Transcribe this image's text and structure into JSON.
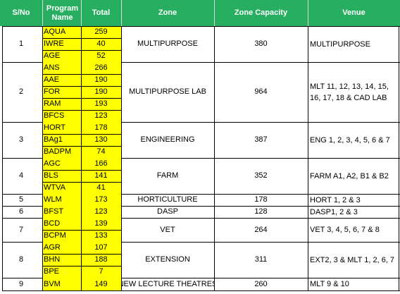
{
  "headers": {
    "sno": "S/No",
    "program": "Program Name",
    "total": "Total",
    "zone": "Zone",
    "capacity": "Zone Capacity",
    "venue": "Venue"
  },
  "groups": [
    {
      "sno": "1",
      "zone": "MULTIPURPOSE",
      "capacity": "380",
      "venue": "MULTIPURPOSE",
      "programs": [
        {
          "name": "AQUA",
          "total": "259"
        },
        {
          "name": "IWRE",
          "total": "40"
        },
        {
          "name": "AGE",
          "total": "52"
        }
      ]
    },
    {
      "sno": "2",
      "zone": "MULTIPURPOSE LAB",
      "capacity": "964",
      "venue": "MLT 11, 12, 13, 14, 15, 16, 17, 18 & CAD LAB",
      "programs": [
        {
          "name": "ANS",
          "total": "266"
        },
        {
          "name": "AAE",
          "total": "190"
        },
        {
          "name": "FOR",
          "total": "190"
        },
        {
          "name": "RAM",
          "total": "193"
        },
        {
          "name": "BFCS",
          "total": "123"
        }
      ]
    },
    {
      "sno": "3",
      "zone": "ENGINEERING",
      "capacity": "387",
      "venue": "ENG 1, 2, 3, 4, 5, 6 & 7",
      "programs": [
        {
          "name": "HORT",
          "total": "178"
        },
        {
          "name": "BAg1",
          "total": "130"
        },
        {
          "name": "BADPM",
          "total": "74"
        }
      ]
    },
    {
      "sno": "4",
      "zone": "FARM",
      "capacity": "352",
      "venue": "FARM A1, A2, B1 & B2",
      "programs": [
        {
          "name": "AGC",
          "total": "166"
        },
        {
          "name": "BLS",
          "total": "141"
        },
        {
          "name": "WTVA",
          "total": "41"
        }
      ]
    },
    {
      "sno": "5",
      "zone": "HORTICULTURE",
      "capacity": "178",
      "venue": "HORT 1, 2 & 3",
      "programs": [
        {
          "name": "WLM",
          "total": "173"
        }
      ]
    },
    {
      "sno": "6",
      "zone": "DASP",
      "capacity": "128",
      "venue": "DASP1, 2 & 3",
      "programs": [
        {
          "name": "BFST",
          "total": "123"
        }
      ]
    },
    {
      "sno": "7",
      "zone": "VET",
      "capacity": "264",
      "venue": "VET 3, 4, 5, 6, 7 & 8",
      "programs": [
        {
          "name": "BCD",
          "total": "139"
        },
        {
          "name": "BCPM",
          "total": "133"
        }
      ]
    },
    {
      "sno": "8",
      "zone": "EXTENSION",
      "capacity": "311",
      "venue": "EXT2, 3 & MLT 1, 2, 6, 7",
      "programs": [
        {
          "name": "AGR",
          "total": "107"
        },
        {
          "name": "BHN",
          "total": "188"
        },
        {
          "name": "BPE",
          "total": "7"
        }
      ]
    },
    {
      "sno": "9",
      "zone": "NEW LECTURE THEATRES",
      "capacity": "260",
      "venue": "MLT 9  & 10",
      "programs": [
        {
          "name": "BVM",
          "total": "149"
        }
      ]
    }
  ],
  "colors": {
    "header": "#27ae60",
    "highlight": "#ffff00",
    "border": "#000000"
  }
}
